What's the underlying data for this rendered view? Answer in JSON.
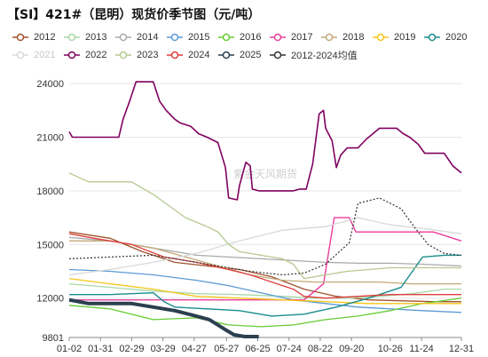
{
  "title": "【SI】421#（昆明）现货价季节图（元/吨）",
  "watermark": "紫金天风期货",
  "chart_data": {
    "type": "line",
    "title": "【SI】421#（昆明）现货价季节图（元/吨）",
    "xlabel": "",
    "ylabel": "",
    "ylim": [
      9801,
      24500
    ],
    "yticks": [
      9801,
      12000,
      15000,
      18000,
      21000,
      24000
    ],
    "x_tick_labels": [
      "01-02",
      "01-31",
      "02-29",
      "03-29",
      "04-27",
      "05-27",
      "06-25",
      "07-24",
      "08-22",
      "09-20",
      "10-26",
      "11-24",
      "12-31"
    ],
    "x_tick_days": [
      2,
      31,
      60,
      89,
      118,
      148,
      177,
      206,
      235,
      264,
      300,
      329,
      366
    ],
    "x_range_days": [
      2,
      366
    ],
    "grid": "horizontal",
    "legend_position": "top",
    "series": [
      {
        "name": "2012",
        "color": "#a0522d",
        "dash": "",
        "width": 1.3,
        "marker": "circle",
        "points": [
          [
            2,
            15700
          ],
          [
            40,
            15350
          ],
          [
            70,
            14600
          ],
          [
            100,
            14000
          ],
          [
            130,
            13800
          ],
          [
            160,
            13600
          ],
          [
            190,
            13200
          ],
          [
            220,
            12500
          ],
          [
            250,
            12100
          ],
          [
            280,
            11900
          ],
          [
            310,
            11850
          ],
          [
            340,
            11800
          ],
          [
            366,
            11800
          ]
        ]
      },
      {
        "name": "2013",
        "color": "#a8d8a8",
        "dash": "",
        "width": 1.3,
        "marker": "circle",
        "points": [
          [
            2,
            12800
          ],
          [
            40,
            12600
          ],
          [
            80,
            12400
          ],
          [
            120,
            12250
          ],
          [
            160,
            12200
          ],
          [
            200,
            12100
          ],
          [
            230,
            12000
          ],
          [
            260,
            12000
          ],
          [
            290,
            12100
          ],
          [
            320,
            12250
          ],
          [
            350,
            12500
          ],
          [
            366,
            12500
          ]
        ]
      },
      {
        "name": "2014",
        "color": "#aaaaaa",
        "dash": "",
        "width": 1.3,
        "marker": "circle",
        "points": [
          [
            2,
            15400
          ],
          [
            40,
            15200
          ],
          [
            80,
            14800
          ],
          [
            120,
            14400
          ],
          [
            150,
            14300
          ],
          [
            180,
            14200
          ],
          [
            210,
            14100
          ],
          [
            240,
            14000
          ],
          [
            270,
            13950
          ],
          [
            300,
            13950
          ],
          [
            330,
            13900
          ],
          [
            366,
            13800
          ]
        ]
      },
      {
        "name": "2015",
        "color": "#5b9bd5",
        "dash": "",
        "width": 1.3,
        "marker": "circle",
        "points": [
          [
            2,
            13600
          ],
          [
            40,
            13500
          ],
          [
            80,
            13300
          ],
          [
            120,
            13000
          ],
          [
            150,
            12700
          ],
          [
            180,
            12300
          ],
          [
            210,
            11900
          ],
          [
            240,
            11700
          ],
          [
            270,
            11500
          ],
          [
            300,
            11400
          ],
          [
            330,
            11300
          ],
          [
            366,
            11200
          ]
        ]
      },
      {
        "name": "2016",
        "color": "#66cc33",
        "dash": "",
        "width": 1.3,
        "marker": "circle",
        "points": [
          [
            2,
            11600
          ],
          [
            40,
            11400
          ],
          [
            80,
            10800
          ],
          [
            120,
            10900
          ],
          [
            150,
            10500
          ],
          [
            180,
            10400
          ],
          [
            210,
            10500
          ],
          [
            240,
            10800
          ],
          [
            270,
            11000
          ],
          [
            300,
            11300
          ],
          [
            330,
            11700
          ],
          [
            366,
            12000
          ]
        ]
      },
      {
        "name": "2017",
        "color": "#e83e9c",
        "dash": "",
        "width": 1.4,
        "marker": "circle",
        "points": [
          [
            2,
            11900
          ],
          [
            60,
            11900
          ],
          [
            120,
            11900
          ],
          [
            180,
            11900
          ],
          [
            220,
            11900
          ],
          [
            238,
            12800
          ],
          [
            248,
            16500
          ],
          [
            262,
            16500
          ],
          [
            268,
            15700
          ],
          [
            300,
            15700
          ],
          [
            340,
            15700
          ],
          [
            366,
            15200
          ]
        ]
      },
      {
        "name": "2018",
        "color": "#c2a878",
        "dash": "",
        "width": 1.3,
        "marker": "circle",
        "points": [
          [
            2,
            15200
          ],
          [
            40,
            15200
          ],
          [
            80,
            14800
          ],
          [
            110,
            14300
          ],
          [
            140,
            13800
          ],
          [
            170,
            13300
          ],
          [
            200,
            13000
          ],
          [
            230,
            12900
          ],
          [
            260,
            12900
          ],
          [
            290,
            12900
          ],
          [
            320,
            12800
          ],
          [
            366,
            12800
          ]
        ]
      },
      {
        "name": "2019",
        "color": "#f5c518",
        "dash": "",
        "width": 1.3,
        "marker": "circle",
        "points": [
          [
            2,
            13100
          ],
          [
            40,
            12800
          ],
          [
            80,
            12500
          ],
          [
            120,
            12100
          ],
          [
            160,
            12000
          ],
          [
            200,
            11900
          ],
          [
            240,
            11800
          ],
          [
            280,
            11700
          ],
          [
            310,
            11700
          ],
          [
            340,
            11700
          ],
          [
            366,
            11700
          ]
        ]
      },
      {
        "name": "2020",
        "color": "#1a8c8c",
        "dash": "",
        "width": 1.4,
        "marker": "circle",
        "points": [
          [
            2,
            12200
          ],
          [
            40,
            12200
          ],
          [
            80,
            12300
          ],
          [
            90,
            11800
          ],
          [
            100,
            11500
          ],
          [
            130,
            11400
          ],
          [
            160,
            11300
          ],
          [
            190,
            11000
          ],
          [
            220,
            11100
          ],
          [
            250,
            11500
          ],
          [
            280,
            12000
          ],
          [
            310,
            12600
          ],
          [
            330,
            14300
          ],
          [
            350,
            14400
          ],
          [
            366,
            14400
          ]
        ]
      },
      {
        "name": "2021",
        "color": "#d8d8d8",
        "dash": "",
        "width": 1.3,
        "marker": "circle",
        "points": [
          [
            2,
            13300
          ],
          [
            40,
            13600
          ],
          [
            80,
            14000
          ],
          [
            120,
            14500
          ],
          [
            160,
            15200
          ],
          [
            200,
            15800
          ],
          [
            240,
            16000
          ],
          [
            270,
            16500
          ],
          [
            300,
            16100
          ],
          [
            330,
            15900
          ],
          [
            366,
            15600
          ]
        ]
      },
      {
        "name": "2022",
        "color": "#800060",
        "dash": "",
        "width": 1.6,
        "marker": "circle",
        "points": [
          [
            2,
            21300
          ],
          [
            5,
            21000
          ],
          [
            40,
            21000
          ],
          [
            48,
            21000
          ],
          [
            52,
            22000
          ],
          [
            58,
            23000
          ],
          [
            64,
            24100
          ],
          [
            80,
            24100
          ],
          [
            86,
            23000
          ],
          [
            92,
            22500
          ],
          [
            100,
            22000
          ],
          [
            105,
            21800
          ],
          [
            115,
            21600
          ],
          [
            122,
            21200
          ],
          [
            130,
            21000
          ],
          [
            140,
            20700
          ],
          [
            147,
            19300
          ],
          [
            150,
            17600
          ],
          [
            158,
            17500
          ],
          [
            160,
            18300
          ],
          [
            166,
            19600
          ],
          [
            170,
            19400
          ],
          [
            172,
            18100
          ],
          [
            178,
            18000
          ],
          [
            190,
            18000
          ],
          [
            200,
            18000
          ],
          [
            210,
            18000
          ],
          [
            216,
            18100
          ],
          [
            222,
            18100
          ],
          [
            228,
            19500
          ],
          [
            234,
            22300
          ],
          [
            238,
            22500
          ],
          [
            240,
            21500
          ],
          [
            246,
            20800
          ],
          [
            250,
            19300
          ],
          [
            254,
            20000
          ],
          [
            260,
            20400
          ],
          [
            270,
            20400
          ],
          [
            278,
            20900
          ],
          [
            290,
            21500
          ],
          [
            300,
            21500
          ],
          [
            306,
            21500
          ],
          [
            312,
            21200
          ],
          [
            318,
            21000
          ],
          [
            326,
            20600
          ],
          [
            332,
            20100
          ],
          [
            350,
            20100
          ],
          [
            358,
            19400
          ],
          [
            366,
            19000
          ]
        ]
      },
      {
        "name": "2023",
        "color": "#b5c98e",
        "dash": "",
        "width": 1.3,
        "marker": "circle",
        "points": [
          [
            2,
            19000
          ],
          [
            20,
            18500
          ],
          [
            60,
            18500
          ],
          [
            80,
            17800
          ],
          [
            110,
            16500
          ],
          [
            130,
            16000
          ],
          [
            140,
            15700
          ],
          [
            150,
            15000
          ],
          [
            160,
            14600
          ],
          [
            180,
            14400
          ],
          [
            200,
            14200
          ],
          [
            210,
            13900
          ],
          [
            220,
            13100
          ],
          [
            240,
            13300
          ],
          [
            260,
            13500
          ],
          [
            280,
            13600
          ],
          [
            300,
            13700
          ],
          [
            330,
            13700
          ],
          [
            366,
            13700
          ]
        ]
      },
      {
        "name": "2024",
        "color": "#e03c3c",
        "dash": "",
        "width": 1.3,
        "marker": "circle",
        "points": [
          [
            2,
            15600
          ],
          [
            30,
            15300
          ],
          [
            60,
            15000
          ],
          [
            90,
            14300
          ],
          [
            120,
            14000
          ],
          [
            150,
            13600
          ],
          [
            170,
            13300
          ],
          [
            190,
            12900
          ],
          [
            210,
            12500
          ],
          [
            220,
            12100
          ],
          [
            240,
            12000
          ],
          [
            270,
            12100
          ],
          [
            300,
            12200
          ],
          [
            330,
            12200
          ],
          [
            366,
            12200
          ]
        ]
      },
      {
        "name": "2025",
        "color": "#2b3f4f",
        "dash": "",
        "width": 4.0,
        "marker": "circle",
        "points": [
          [
            2,
            11900
          ],
          [
            20,
            11700
          ],
          [
            50,
            11700
          ],
          [
            60,
            11700
          ],
          [
            80,
            11500
          ],
          [
            100,
            11300
          ],
          [
            120,
            11000
          ],
          [
            132,
            10800
          ],
          [
            140,
            10500
          ],
          [
            148,
            10200
          ],
          [
            155,
            9950
          ],
          [
            165,
            9850
          ],
          [
            178,
            9850
          ]
        ]
      },
      {
        "name": "2012-2024均值",
        "color": "#333333",
        "dash": "2,2",
        "width": 1.2,
        "marker": "circle",
        "points": [
          [
            2,
            14200
          ],
          [
            40,
            14300
          ],
          [
            80,
            14400
          ],
          [
            110,
            14100
          ],
          [
            140,
            13800
          ],
          [
            170,
            13500
          ],
          [
            200,
            13300
          ],
          [
            220,
            13400
          ],
          [
            240,
            13900
          ],
          [
            262,
            15100
          ],
          [
            270,
            17300
          ],
          [
            290,
            17600
          ],
          [
            310,
            17000
          ],
          [
            322,
            16000
          ],
          [
            335,
            15000
          ],
          [
            350,
            14500
          ],
          [
            366,
            14400
          ]
        ]
      }
    ]
  }
}
